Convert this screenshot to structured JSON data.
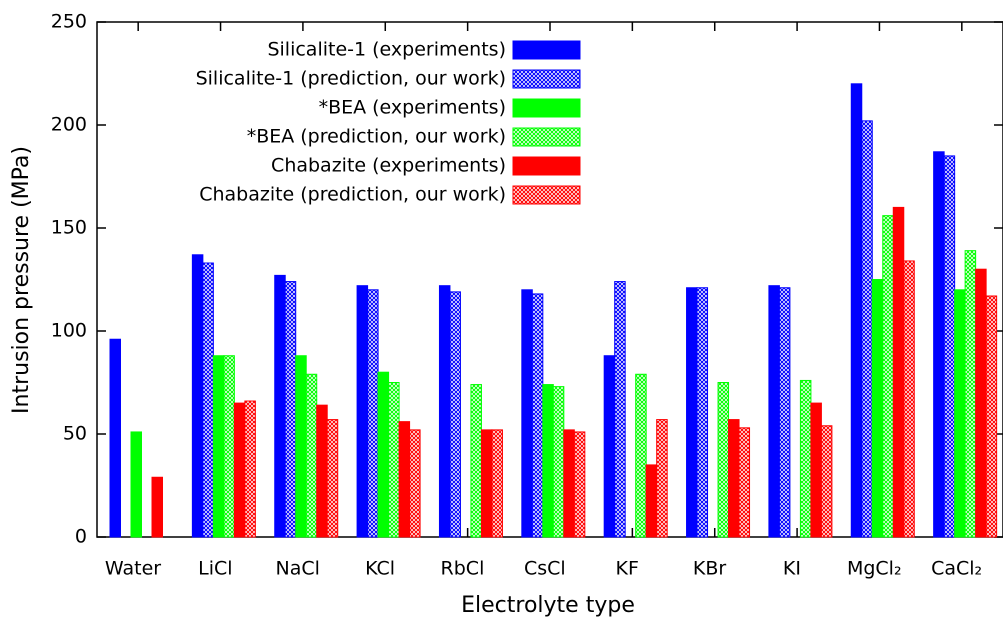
{
  "chart_data": {
    "type": "bar",
    "xlabel": "Electrolyte type",
    "ylabel": "Intrusion pressure (MPa)",
    "categories": [
      "Water",
      "LiCl",
      "NaCl",
      "KCl",
      "RbCl",
      "CsCl",
      "KF",
      "KBr",
      "KI",
      "MgCl₂",
      "CaCl₂"
    ],
    "series": [
      {
        "name": "Silicalite-1 (experiments)",
        "color": "#0000ff",
        "fill": "solid",
        "values": [
          96,
          137,
          127,
          122,
          122,
          120,
          88,
          121,
          122,
          220,
          187
        ]
      },
      {
        "name": "Silicalite-1 (prediction, our work)",
        "color": "#0000ff",
        "fill": "crosshatch",
        "values": [
          null,
          133,
          124,
          120,
          119,
          118,
          124,
          121,
          121,
          202,
          185
        ]
      },
      {
        "name": "*BEA (experiments)",
        "color": "#00ff00",
        "fill": "solid",
        "values": [
          51,
          88,
          88,
          80,
          null,
          74,
          null,
          null,
          null,
          125,
          120
        ]
      },
      {
        "name": "*BEA (prediction, our work)",
        "color": "#00ff00",
        "fill": "crosshatch",
        "values": [
          null,
          88,
          79,
          75,
          74,
          73,
          79,
          75,
          76,
          156,
          139
        ]
      },
      {
        "name": "Chabazite (experiments)",
        "color": "#ff0000",
        "fill": "solid",
        "values": [
          29,
          65,
          64,
          56,
          52,
          52,
          35,
          57,
          65,
          160,
          130
        ]
      },
      {
        "name": "Chabazite (prediction, our work)",
        "color": "#ff0000",
        "fill": "crosshatch",
        "values": [
          null,
          66,
          57,
          52,
          52,
          51,
          57,
          53,
          54,
          134,
          117
        ]
      }
    ],
    "ylim": [
      0,
      250
    ],
    "yticks": [
      0,
      50,
      100,
      150,
      200,
      250
    ],
    "legend": "top-left"
  }
}
